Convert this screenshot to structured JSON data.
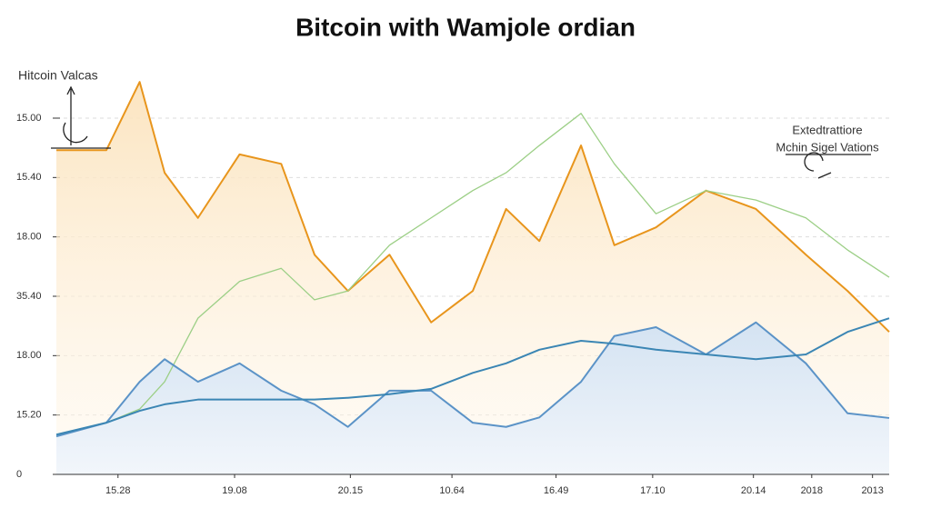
{
  "chart_data": {
    "type": "line",
    "title": "Bitcoin with Wamjole ordian",
    "ylabel": "Hitcoin Valcas",
    "annotation": [
      "Extedtrattiore",
      "Mchin Sigel Vations"
    ],
    "x": [
      0,
      6,
      10,
      13,
      17,
      22,
      27,
      31,
      35,
      40,
      45,
      50,
      54,
      58,
      63,
      67,
      72,
      78,
      84,
      90,
      95,
      100
    ],
    "xlim": [
      0,
      100
    ],
    "xticks": [
      {
        "value": 7.4,
        "label": "15.28"
      },
      {
        "value": 21.4,
        "label": "19.08"
      },
      {
        "value": 35.3,
        "label": "20.15"
      },
      {
        "value": 47.5,
        "label": "10.64"
      },
      {
        "value": 60.0,
        "label": "16.49"
      },
      {
        "value": 71.6,
        "label": "17.10"
      },
      {
        "value": 83.7,
        "label": "20.14"
      },
      {
        "value": 90.7,
        "label": "2018"
      },
      {
        "value": 98.0,
        "label": "2013"
      }
    ],
    "ylim": [
      0,
      7
    ],
    "yticks": [
      0,
      {
        "value": 1,
        "label": "15.20"
      },
      {
        "value": 2,
        "label": "18.00"
      },
      {
        "value": 3,
        "label": "35.40"
      },
      {
        "value": 4,
        "label": "18.00"
      },
      {
        "value": 5,
        "label": "15.40"
      },
      {
        "value": 6,
        "label": "15.00"
      }
    ],
    "grid": true,
    "series": [
      {
        "name": "orange",
        "color": "#e8951c",
        "area": "#fbe7c6",
        "values": [
          5.46,
          5.46,
          6.61,
          5.08,
          4.32,
          5.39,
          5.23,
          3.7,
          3.09,
          3.7,
          2.56,
          3.09,
          4.47,
          3.93,
          5.54,
          3.86,
          4.16,
          4.78,
          4.47,
          3.7,
          3.09,
          2.4
        ]
      },
      {
        "name": "green",
        "color": "#9ccf86",
        "values": [
          0.64,
          0.87,
          1.1,
          1.56,
          2.63,
          3.25,
          3.47,
          2.94,
          3.09,
          3.86,
          4.32,
          4.78,
          5.08,
          5.54,
          6.08,
          5.23,
          4.39,
          4.78,
          4.62,
          4.32,
          3.78,
          3.32
        ]
      },
      {
        "name": "blue",
        "color": "#5b93c7",
        "area": "#dce8f4",
        "values": [
          0.64,
          0.87,
          1.56,
          1.94,
          1.56,
          1.87,
          1.41,
          1.18,
          0.8,
          1.41,
          1.41,
          0.87,
          0.8,
          0.96,
          1.56,
          2.33,
          2.48,
          2.02,
          2.56,
          1.87,
          1.03,
          0.95
        ]
      },
      {
        "name": "trend",
        "color": "#3b86b4",
        "values": [
          0.67,
          0.87,
          1.07,
          1.18,
          1.26,
          1.26,
          1.26,
          1.26,
          1.29,
          1.35,
          1.44,
          1.71,
          1.87,
          2.1,
          2.25,
          2.2,
          2.1,
          2.02,
          1.94,
          2.02,
          2.4,
          2.63
        ]
      }
    ]
  }
}
